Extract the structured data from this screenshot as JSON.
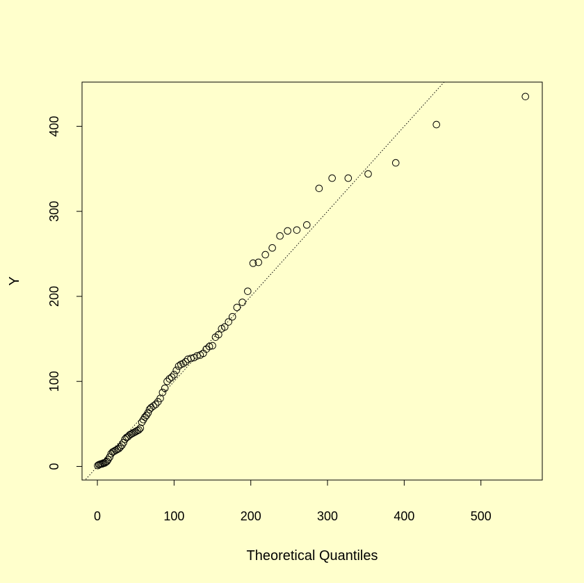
{
  "chart_data": {
    "type": "scatter",
    "title": "",
    "xlabel": "Theoretical Quantiles",
    "ylabel": "Y",
    "xlim": [
      -20,
      580
    ],
    "ylim": [
      -16,
      452
    ],
    "x_ticks": [
      0,
      100,
      200,
      300,
      400,
      500
    ],
    "y_ticks": [
      0,
      100,
      200,
      300,
      400
    ],
    "grid": false,
    "background": "#ffffcc",
    "reference_line": {
      "style": "dotted",
      "color": "#000000",
      "slope": 1.0,
      "intercept": 0
    },
    "series": [
      {
        "marker": "open-circle",
        "color": "#000000",
        "points": [
          [
            0.5,
            1
          ],
          [
            2,
            2
          ],
          [
            3.5,
            2.5
          ],
          [
            5,
            3
          ],
          [
            6.5,
            3
          ],
          [
            8,
            4
          ],
          [
            9.5,
            4
          ],
          [
            11,
            5
          ],
          [
            12.5,
            6
          ],
          [
            14,
            8
          ],
          [
            16,
            11
          ],
          [
            18,
            15
          ],
          [
            20,
            17
          ],
          [
            22,
            18
          ],
          [
            24,
            19
          ],
          [
            26,
            20
          ],
          [
            28,
            21
          ],
          [
            30,
            23
          ],
          [
            32,
            25
          ],
          [
            34,
            28
          ],
          [
            36,
            32
          ],
          [
            38,
            34
          ],
          [
            40,
            35
          ],
          [
            42,
            37
          ],
          [
            44,
            38
          ],
          [
            46,
            39
          ],
          [
            48,
            40
          ],
          [
            50,
            41
          ],
          [
            52,
            42
          ],
          [
            54,
            43
          ],
          [
            56,
            45
          ],
          [
            58,
            52
          ],
          [
            60,
            55
          ],
          [
            62,
            58
          ],
          [
            64,
            60
          ],
          [
            66,
            63
          ],
          [
            68,
            67
          ],
          [
            70,
            69
          ],
          [
            73,
            71
          ],
          [
            76,
            73
          ],
          [
            79,
            76
          ],
          [
            82,
            80
          ],
          [
            85,
            87
          ],
          [
            88,
            92
          ],
          [
            91,
            100
          ],
          [
            94,
            103
          ],
          [
            97,
            105
          ],
          [
            100,
            108
          ],
          [
            103,
            113
          ],
          [
            106,
            118
          ],
          [
            109,
            120
          ],
          [
            112,
            121
          ],
          [
            115,
            123
          ],
          [
            118,
            126
          ],
          [
            122,
            127
          ],
          [
            126,
            128
          ],
          [
            130,
            130
          ],
          [
            134,
            131
          ],
          [
            138,
            133
          ],
          [
            142,
            138
          ],
          [
            146,
            141
          ],
          [
            150,
            142
          ],
          [
            154,
            152
          ],
          [
            158,
            155
          ],
          [
            162,
            162
          ],
          [
            166,
            164
          ],
          [
            171,
            170
          ],
          [
            176,
            176
          ],
          [
            182,
            187
          ],
          [
            189,
            193
          ],
          [
            196,
            206
          ],
          [
            203,
            239
          ],
          [
            210,
            240
          ],
          [
            219,
            249
          ],
          [
            228,
            257
          ],
          [
            238,
            271
          ],
          [
            248,
            277
          ],
          [
            260,
            278
          ],
          [
            273,
            284
          ],
          [
            289,
            327
          ],
          [
            306,
            339
          ],
          [
            327,
            339
          ],
          [
            353,
            344
          ],
          [
            389,
            357
          ],
          [
            442,
            402
          ],
          [
            558,
            435
          ]
        ]
      }
    ]
  }
}
